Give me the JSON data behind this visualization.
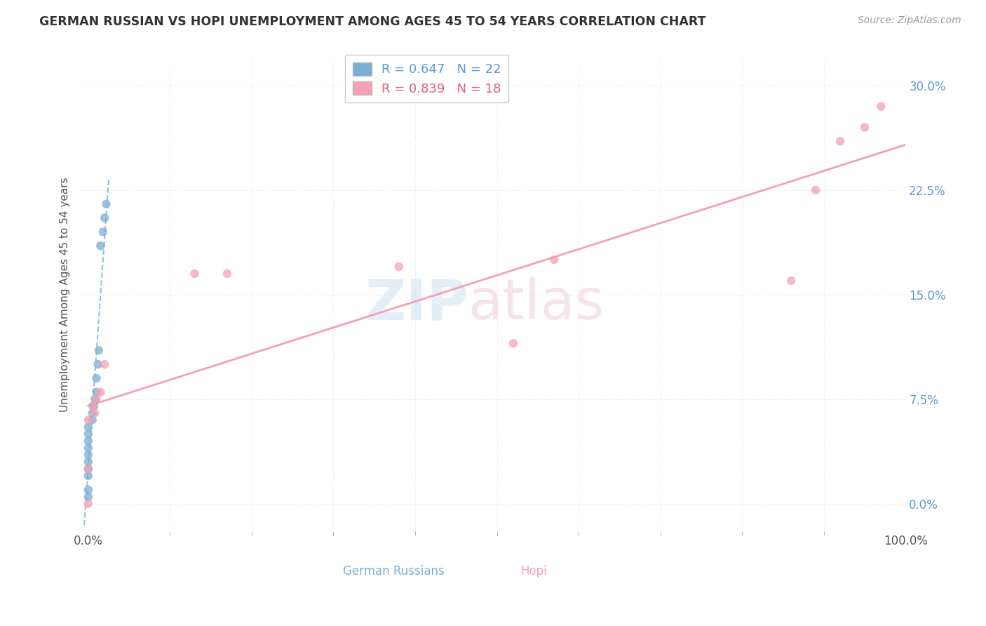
{
  "title": "GERMAN RUSSIAN VS HOPI UNEMPLOYMENT AMONG AGES 45 TO 54 YEARS CORRELATION CHART",
  "source": "Source: ZipAtlas.com",
  "ylabel": "Unemployment Among Ages 45 to 54 years",
  "xlim": [
    -0.01,
    1.0
  ],
  "ylim": [
    -0.02,
    0.32
  ],
  "xtick_positions": [
    0.0,
    1.0
  ],
  "xtick_labels": [
    "0.0%",
    "100.0%"
  ],
  "xtick_minor": [
    0.1,
    0.2,
    0.3,
    0.4,
    0.5,
    0.6,
    0.7,
    0.8,
    0.9
  ],
  "ytick_positions": [
    0.0,
    0.075,
    0.15,
    0.225,
    0.3
  ],
  "ytick_labels": [
    "0.0%",
    "7.5%",
    "15.0%",
    "22.5%",
    "30.0%"
  ],
  "legend_R_gr": "R = 0.647",
  "legend_N_gr": "N = 22",
  "legend_R_hopi": "R = 0.839",
  "legend_N_hopi": "N = 18",
  "german_russian_x": [
    0.0,
    0.0,
    0.0,
    0.0,
    0.0,
    0.0,
    0.0,
    0.0,
    0.0,
    0.0,
    0.005,
    0.005,
    0.007,
    0.008,
    0.01,
    0.01,
    0.012,
    0.013,
    0.015,
    0.018,
    0.02,
    0.022
  ],
  "german_russian_y": [
    0.005,
    0.01,
    0.02,
    0.025,
    0.03,
    0.035,
    0.04,
    0.045,
    0.05,
    0.055,
    0.06,
    0.065,
    0.07,
    0.075,
    0.08,
    0.09,
    0.1,
    0.11,
    0.185,
    0.195,
    0.205,
    0.215
  ],
  "hopi_x": [
    0.0,
    0.0,
    0.0,
    0.005,
    0.008,
    0.01,
    0.015,
    0.02,
    0.13,
    0.17,
    0.38,
    0.52,
    0.57,
    0.86,
    0.89,
    0.92,
    0.95,
    0.97
  ],
  "hopi_y": [
    0.0,
    0.025,
    0.06,
    0.07,
    0.065,
    0.075,
    0.08,
    0.1,
    0.165,
    0.165,
    0.17,
    0.115,
    0.175,
    0.16,
    0.225,
    0.26,
    0.27,
    0.285
  ],
  "gr_color": "#7bafd4",
  "hopi_color": "#f4a0b5",
  "gr_line_color": "#7bafd4",
  "hopi_line_color": "#f4a0b5",
  "watermark_zip": "ZIP",
  "watermark_atlas": "atlas",
  "background_color": "#ffffff",
  "grid_color": "#e8e8e8",
  "ytick_color": "#5b9bd5",
  "xtick_color": "#555555",
  "ylabel_color": "#555555",
  "bottom_label_gr": "German Russians",
  "bottom_label_hopi": "Hopi"
}
